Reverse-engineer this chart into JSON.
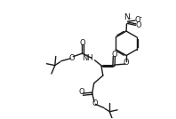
{
  "bg_color": "#ffffff",
  "line_color": "#1a1a1a",
  "line_width": 1.0,
  "figsize": [
    1.98,
    1.34
  ],
  "dpi": 100,
  "xlim": [
    0,
    9.9
  ],
  "ylim": [
    0,
    6.7
  ]
}
